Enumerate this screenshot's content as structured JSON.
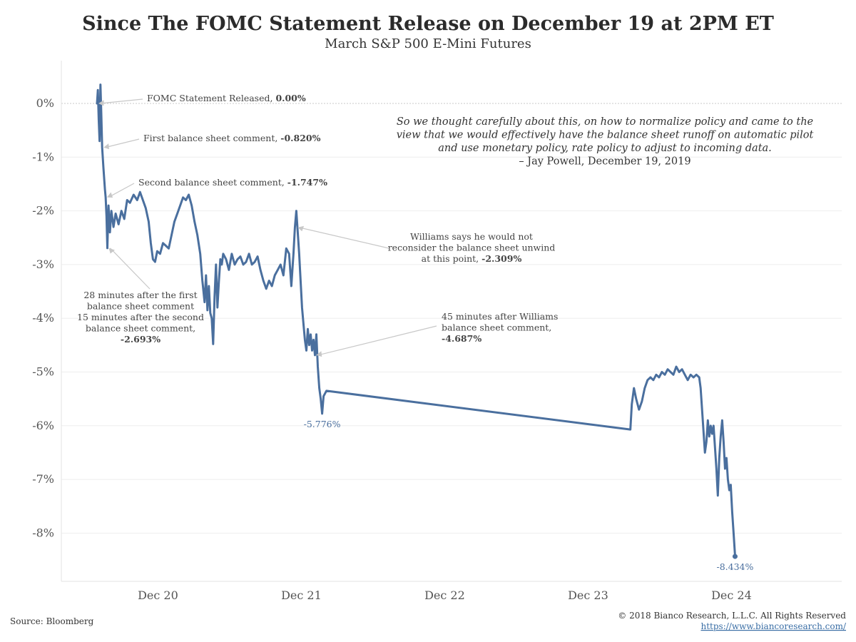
{
  "chart_data": {
    "type": "line",
    "title": "Since The FOMC Statement Release on December 19 at 2PM ET",
    "subtitle": "March S&P 500 E-Mini Futures",
    "xlabel": "",
    "ylabel": "",
    "x_ticks": [
      "Dec 20",
      "Dec 21",
      "Dec 22",
      "Dec 23",
      "Dec 24"
    ],
    "y_ticks": [
      "0%",
      "-1%",
      "-2%",
      "-3%",
      "-4%",
      "-5%",
      "-6%",
      "-7%",
      "-8%"
    ],
    "ylim": [
      -8.9,
      0.8
    ],
    "grid": "horizontal",
    "line_color": "#4a6f9e",
    "series": [
      {
        "x_unit": "days since Dec 19 2PM ET",
        "points": [
          [
            0.0,
            0.0
          ],
          [
            0.006,
            0.25
          ],
          [
            0.012,
            -0.3
          ],
          [
            0.018,
            -0.7
          ],
          [
            0.024,
            0.35
          ],
          [
            0.03,
            -0.2
          ],
          [
            0.036,
            -0.82
          ],
          [
            0.045,
            -1.2
          ],
          [
            0.055,
            -1.6
          ],
          [
            0.06,
            -1.747
          ],
          [
            0.066,
            -2.1
          ],
          [
            0.072,
            -2.693
          ],
          [
            0.08,
            -1.9
          ],
          [
            0.09,
            -2.4
          ],
          [
            0.1,
            -2.0
          ],
          [
            0.115,
            -2.3
          ],
          [
            0.13,
            -2.05
          ],
          [
            0.15,
            -2.25
          ],
          [
            0.17,
            -2.0
          ],
          [
            0.19,
            -2.15
          ],
          [
            0.21,
            -1.8
          ],
          [
            0.23,
            -1.85
          ],
          [
            0.255,
            -1.7
          ],
          [
            0.28,
            -1.8
          ],
          [
            0.3,
            -1.65
          ],
          [
            0.32,
            -1.8
          ],
          [
            0.34,
            -1.95
          ],
          [
            0.36,
            -2.2
          ],
          [
            0.375,
            -2.6
          ],
          [
            0.39,
            -2.9
          ],
          [
            0.405,
            -2.95
          ],
          [
            0.42,
            -2.75
          ],
          [
            0.44,
            -2.8
          ],
          [
            0.46,
            -2.6
          ],
          [
            0.48,
            -2.65
          ],
          [
            0.5,
            -2.7
          ],
          [
            0.52,
            -2.45
          ],
          [
            0.54,
            -2.2
          ],
          [
            0.56,
            -2.05
          ],
          [
            0.58,
            -1.9
          ],
          [
            0.6,
            -1.75
          ],
          [
            0.62,
            -1.8
          ],
          [
            0.64,
            -1.7
          ],
          [
            0.66,
            -1.9
          ],
          [
            0.68,
            -2.2
          ],
          [
            0.7,
            -2.45
          ],
          [
            0.72,
            -2.8
          ],
          [
            0.735,
            -3.3
          ],
          [
            0.75,
            -3.7
          ],
          [
            0.76,
            -3.2
          ],
          [
            0.77,
            -3.85
          ],
          [
            0.78,
            -3.4
          ],
          [
            0.79,
            -3.9
          ],
          [
            0.8,
            -4.0
          ],
          [
            0.81,
            -4.48
          ],
          [
            0.82,
            -3.6
          ],
          [
            0.83,
            -3.0
          ],
          [
            0.84,
            -3.8
          ],
          [
            0.85,
            -3.3
          ],
          [
            0.86,
            -2.9
          ],
          [
            0.87,
            -3.0
          ],
          [
            0.88,
            -2.8
          ],
          [
            0.9,
            -2.9
          ],
          [
            0.92,
            -3.1
          ],
          [
            0.94,
            -2.8
          ],
          [
            0.96,
            -3.0
          ],
          [
            0.98,
            -2.9
          ],
          [
            1.0,
            -2.85
          ],
          [
            1.02,
            -3.0
          ],
          [
            1.04,
            -2.95
          ],
          [
            1.06,
            -2.8
          ],
          [
            1.08,
            -3.0
          ],
          [
            1.1,
            -2.95
          ],
          [
            1.12,
            -2.85
          ],
          [
            1.14,
            -3.1
          ],
          [
            1.16,
            -3.3
          ],
          [
            1.18,
            -3.45
          ],
          [
            1.2,
            -3.3
          ],
          [
            1.22,
            -3.4
          ],
          [
            1.24,
            -3.2
          ],
          [
            1.26,
            -3.1
          ],
          [
            1.28,
            -3.0
          ],
          [
            1.3,
            -3.2
          ],
          [
            1.32,
            -2.7
          ],
          [
            1.34,
            -2.8
          ],
          [
            1.355,
            -3.4
          ],
          [
            1.37,
            -2.8
          ],
          [
            1.38,
            -2.309
          ],
          [
            1.39,
            -2.0
          ],
          [
            1.4,
            -2.4
          ],
          [
            1.41,
            -2.8
          ],
          [
            1.42,
            -3.3
          ],
          [
            1.43,
            -3.8
          ],
          [
            1.44,
            -4.1
          ],
          [
            1.45,
            -4.4
          ],
          [
            1.46,
            -4.6
          ],
          [
            1.47,
            -4.2
          ],
          [
            1.48,
            -4.5
          ],
          [
            1.49,
            -4.3
          ],
          [
            1.5,
            -4.6
          ],
          [
            1.51,
            -4.4
          ],
          [
            1.52,
            -4.687
          ],
          [
            1.53,
            -4.3
          ],
          [
            1.54,
            -4.9
          ],
          [
            1.55,
            -5.3
          ],
          [
            1.56,
            -5.5
          ],
          [
            1.57,
            -5.776
          ],
          [
            1.58,
            -5.45
          ],
          [
            1.6,
            -5.35
          ],
          [
            3.72,
            -6.07
          ],
          [
            3.73,
            -5.6
          ],
          [
            3.745,
            -5.3
          ],
          [
            3.76,
            -5.5
          ],
          [
            3.78,
            -5.7
          ],
          [
            3.8,
            -5.55
          ],
          [
            3.82,
            -5.3
          ],
          [
            3.84,
            -5.15
          ],
          [
            3.86,
            -5.1
          ],
          [
            3.88,
            -5.15
          ],
          [
            3.9,
            -5.05
          ],
          [
            3.92,
            -5.1
          ],
          [
            3.94,
            -5.0
          ],
          [
            3.96,
            -5.05
          ],
          [
            3.98,
            -4.95
          ],
          [
            4.0,
            -5.0
          ],
          [
            4.02,
            -5.05
          ],
          [
            4.04,
            -4.9
          ],
          [
            4.06,
            -5.0
          ],
          [
            4.08,
            -4.95
          ],
          [
            4.1,
            -5.05
          ],
          [
            4.12,
            -5.15
          ],
          [
            4.14,
            -5.05
          ],
          [
            4.16,
            -5.1
          ],
          [
            4.18,
            -5.05
          ],
          [
            4.2,
            -5.1
          ],
          [
            4.21,
            -5.3
          ],
          [
            4.22,
            -5.7
          ],
          [
            4.23,
            -6.1
          ],
          [
            4.24,
            -6.5
          ],
          [
            4.25,
            -6.3
          ],
          [
            4.26,
            -5.9
          ],
          [
            4.27,
            -6.2
          ],
          [
            4.28,
            -6.0
          ],
          [
            4.29,
            -6.15
          ],
          [
            4.3,
            -6.0
          ],
          [
            4.31,
            -6.4
          ],
          [
            4.32,
            -6.8
          ],
          [
            4.33,
            -7.3
          ],
          [
            4.34,
            -6.6
          ],
          [
            4.35,
            -6.2
          ],
          [
            4.36,
            -5.9
          ],
          [
            4.37,
            -6.3
          ],
          [
            4.38,
            -6.8
          ],
          [
            4.39,
            -6.6
          ],
          [
            4.4,
            -7.0
          ],
          [
            4.41,
            -7.2
          ],
          [
            4.42,
            -7.1
          ],
          [
            4.43,
            -7.6
          ],
          [
            4.44,
            -8.0
          ],
          [
            4.45,
            -8.434
          ]
        ]
      }
    ],
    "annotations": [
      {
        "x": 0.0,
        "y": 0.0,
        "lines": [
          [
            {
              "t": "FOMC Statement Released, "
            },
            {
              "t": "0.00%",
              "b": true
            }
          ]
        ]
      },
      {
        "x": 0.036,
        "y": -0.82,
        "lines": [
          [
            {
              "t": "First balance sheet comment,  "
            },
            {
              "t": "-0.820%",
              "b": true
            }
          ]
        ]
      },
      {
        "x": 0.06,
        "y": -1.747,
        "lines": [
          [
            {
              "t": "Second balance sheet comment, "
            },
            {
              "t": "-1.747%",
              "b": true
            }
          ]
        ]
      },
      {
        "x": 0.072,
        "y": -2.693,
        "lines": [
          [
            {
              "t": "28 minutes after the first"
            }
          ],
          [
            {
              "t": "balance sheet comment"
            }
          ],
          [
            {
              "t": "15 minutes after the second"
            }
          ],
          [
            {
              "t": "balance sheet comment,"
            }
          ],
          [
            {
              "t": "-2.693%",
              "b": true
            }
          ]
        ]
      },
      {
        "x": 1.39,
        "y": -2.309,
        "lines": [
          [
            {
              "t": "Williams says he would not"
            }
          ],
          [
            {
              "t": "reconsider the balance sheet unwind"
            }
          ],
          [
            {
              "t": "at this point, "
            },
            {
              "t": "-2.309%",
              "b": true
            }
          ]
        ]
      },
      {
        "x": 1.52,
        "y": -4.687,
        "lines": [
          [
            {
              "t": "45 minutes after Williams"
            }
          ],
          [
            {
              "t": "balance sheet comment,"
            }
          ],
          [
            {
              "t": "-4.687%",
              "b": true
            }
          ]
        ]
      }
    ],
    "point_labels": [
      {
        "x": 1.57,
        "y": -5.776,
        "text": "-5.776%"
      },
      {
        "x": 4.45,
        "y": -8.434,
        "text": "-8.434%"
      }
    ],
    "quote": {
      "lines": [
        "So we thought carefully about this, on how to normalize policy and came to the",
        "view that we would effectively have the balance sheet runoff on automatic pilot",
        "and use monetary policy, rate policy to adjust to incoming data."
      ],
      "attribution": "– Jay Powell, December 19, 2019"
    }
  },
  "footer": {
    "source": "Source: Bloomberg",
    "copyright": "© 2018 Bianco Research, L.L.C. All Rights Reserved",
    "url": "https://www.biancoresearch.com/"
  }
}
